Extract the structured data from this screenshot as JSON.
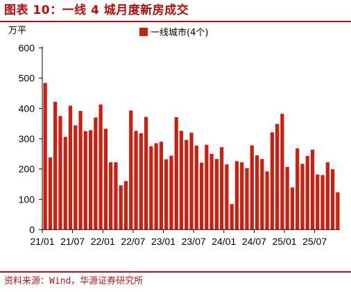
{
  "header": {
    "title": "图表 10：一线 4 城月度新房成交"
  },
  "footer": {
    "source": "资料来源：Wind，华源证券研究所"
  },
  "colors": {
    "accent": "#b80d0d",
    "bar": "#cc1f10",
    "axis": "#000000"
  },
  "chart_data": {
    "type": "bar",
    "unit_label": "万平",
    "legend": {
      "label": "一线城市(4个)",
      "position": "top-center"
    },
    "ylim": [
      0,
      600
    ],
    "yticks": [
      0,
      100,
      200,
      300,
      400,
      500,
      600
    ],
    "grid": false,
    "xtick_labels": [
      "21/01",
      "21/07",
      "22/01",
      "22/07",
      "23/01",
      "23/07",
      "24/01",
      "24/07",
      "25/01",
      "25/07"
    ],
    "xtick_every": 6,
    "series": [
      {
        "name": "一线城市(4个)",
        "values": [
          484,
          238,
          422,
          375,
          306,
          409,
          344,
          392,
          325,
          328,
          370,
          413,
          333,
          222,
          222,
          146,
          160,
          393,
          326,
          318,
          372,
          275,
          285,
          290,
          232,
          244,
          371,
          326,
          296,
          320,
          277,
          221,
          280,
          250,
          233,
          272,
          215,
          84,
          226,
          222,
          203,
          278,
          245,
          233,
          192,
          321,
          349,
          382,
          207,
          139,
          268,
          217,
          243,
          264,
          182,
          180,
          222,
          199,
          123
        ]
      }
    ]
  }
}
